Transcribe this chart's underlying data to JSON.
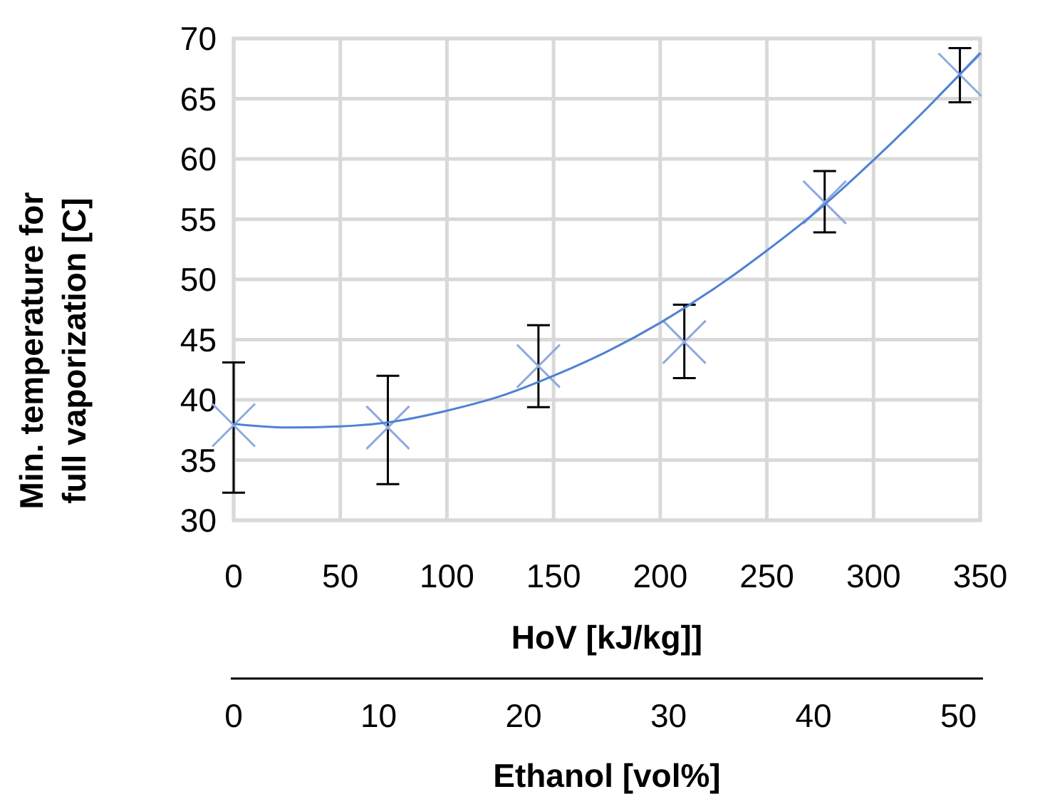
{
  "chart_data": {
    "type": "scatter",
    "xlabel": "HoV [kJ/kg]]",
    "ylabel": "Min. temperature for full vaporization  [C]",
    "x2label": "Ethanol [vol%]",
    "xlim": [
      0,
      350
    ],
    "xticks": [
      0,
      50,
      100,
      150,
      200,
      250,
      300,
      350
    ],
    "ylim": [
      30,
      70
    ],
    "yticks": [
      30,
      35,
      40,
      45,
      50,
      55,
      60,
      65,
      70
    ],
    "x2lim": [
      0,
      51.5
    ],
    "x2ticks": [
      0,
      10,
      20,
      30,
      40,
      50
    ],
    "grid": true,
    "series": [
      {
        "color": "#8eaadf",
        "marker": "cross",
        "x": [
          0,
          72.3,
          142.9,
          211.3,
          277.1,
          340.5
        ],
        "values": [
          37.9,
          37.7,
          42.8,
          44.8,
          56.4,
          67.0
        ],
        "errors": [
          [
            32.3,
            43.1
          ],
          [
            33.0,
            42.0
          ],
          [
            39.4,
            46.2
          ],
          [
            41.8,
            47.9
          ],
          [
            53.9,
            59.0
          ],
          [
            64.7,
            69.2
          ]
        ]
      },
      {
        "type": "line",
        "color": "#4f81d4",
        "marker": "none",
        "x": [
          0,
          25,
          50,
          75,
          100,
          125,
          150,
          175,
          200,
          225,
          250,
          275,
          300,
          325,
          350
        ],
        "values": [
          38.0,
          37.7,
          37.8,
          38.2,
          39.1,
          40.3,
          42.0,
          44.0,
          46.4,
          49.2,
          52.4,
          55.9,
          59.9,
          64.2,
          68.8
        ]
      }
    ]
  }
}
